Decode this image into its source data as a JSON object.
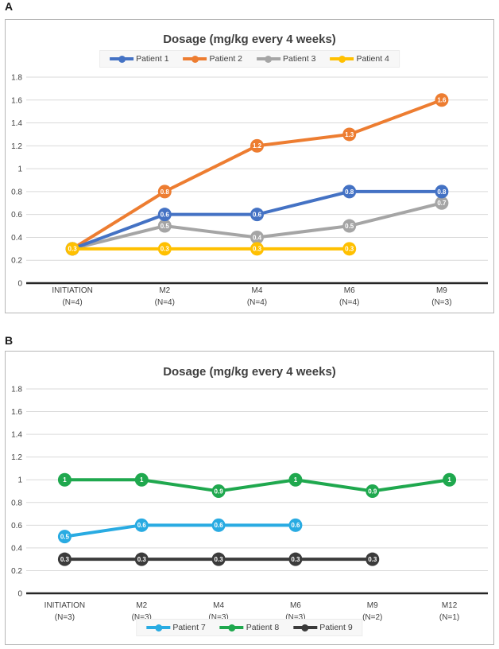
{
  "figure": {
    "panel_a_label": "A",
    "panel_b_label": "B"
  },
  "palette": {
    "gridline": "#d9d9d9",
    "axis": "#262626",
    "title_text": "#3f3f3f",
    "axis_text": "#404040",
    "marker_label_text": "#ffffff",
    "legend_background": "#f7f7f7"
  },
  "chart_data": [
    {
      "type": "line",
      "panel": "A",
      "title": "Dosage (mg/kg every 4 weeks)",
      "legend_position": "top",
      "grid": true,
      "data_labels": "inside markers",
      "ylim": [
        0,
        1.8
      ],
      "y_ticks": [
        1.8,
        1.6,
        1.4,
        1.2,
        1,
        0.8,
        0.6,
        0.4,
        0.2,
        0
      ],
      "categories": [
        "INITIATION",
        "M2",
        "M4",
        "M6",
        "M9"
      ],
      "category_sublabels": [
        "(N=4)",
        "(N=4)",
        "(N=4)",
        "(N=4)",
        "(N=3)"
      ],
      "series": [
        {
          "name": "Patient 1",
          "color": "#4472C4",
          "z": 3,
          "values": [
            0.3,
            0.6,
            0.6,
            0.8,
            0.8
          ]
        },
        {
          "name": "Patient 2",
          "color": "#ED7D31",
          "z": 1,
          "values": [
            0.3,
            0.8,
            1.2,
            1.3,
            1.6
          ]
        },
        {
          "name": "Patient 3",
          "color": "#A5A5A5",
          "z": 2,
          "values": [
            0.3,
            0.5,
            0.4,
            0.5,
            0.7
          ]
        },
        {
          "name": "Patient 4",
          "color": "#FFC000",
          "z": 4,
          "values": [
            0.3,
            0.3,
            0.3,
            0.3,
            null
          ]
        }
      ]
    },
    {
      "type": "line",
      "panel": "B",
      "title": "Dosage (mg/kg every 4 weeks)",
      "legend_position": "bottom",
      "grid": true,
      "data_labels": "inside markers",
      "ylim": [
        0,
        1.8
      ],
      "y_ticks": [
        1.8,
        1.6,
        1.4,
        1.2,
        1,
        0.8,
        0.6,
        0.4,
        0.2,
        0
      ],
      "categories": [
        "INITIATION",
        "M2",
        "M4",
        "M6",
        "M9",
        "M12"
      ],
      "category_sublabels": [
        "(N=3)",
        "(N=3)",
        "(N=3)",
        "(N=3)",
        "(N=2)",
        "(N=1)"
      ],
      "series": [
        {
          "name": "Patient 7",
          "color": "#29ABE2",
          "z": 1,
          "values": [
            0.5,
            0.6,
            0.6,
            0.6,
            null,
            null
          ]
        },
        {
          "name": "Patient 8",
          "color": "#1FA84E",
          "z": 2,
          "values": [
            1,
            1,
            0.9,
            1,
            0.9,
            1
          ]
        },
        {
          "name": "Patient 9",
          "color": "#3B3B3B",
          "z": 3,
          "values": [
            0.3,
            0.3,
            0.3,
            0.3,
            0.3,
            null
          ]
        }
      ]
    }
  ]
}
